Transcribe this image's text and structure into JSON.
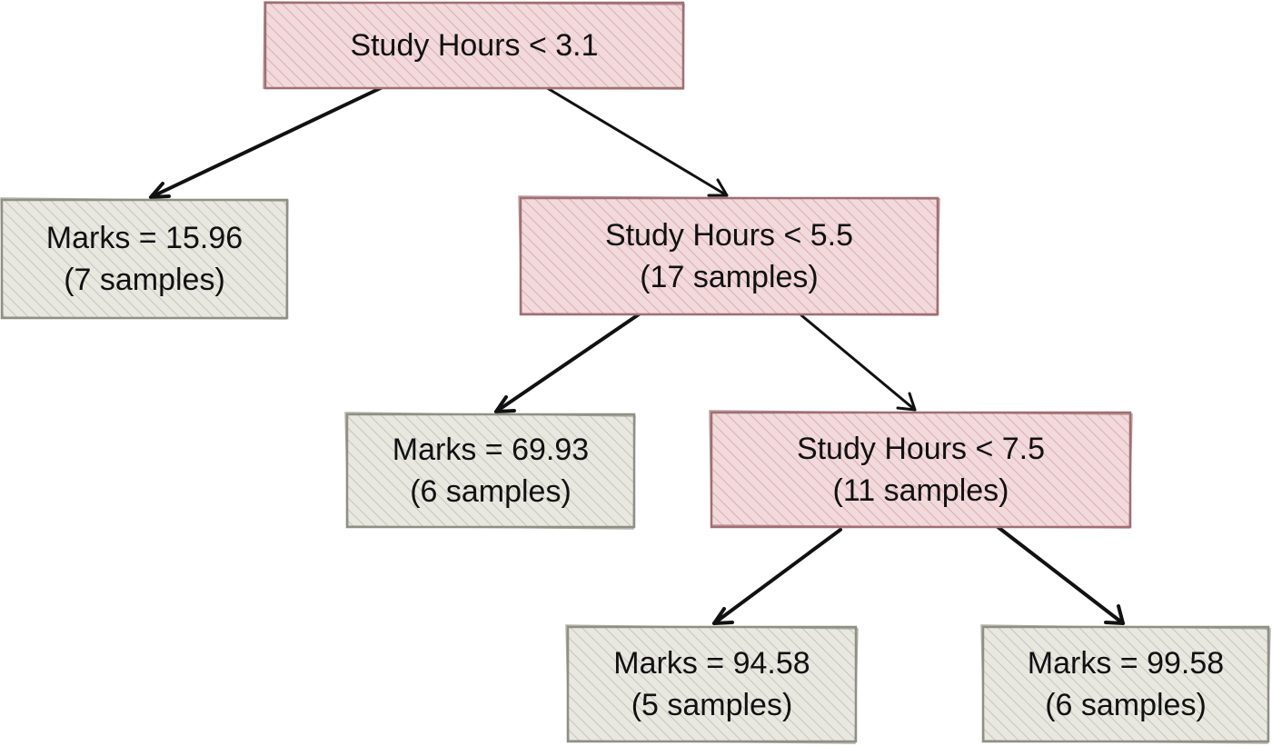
{
  "colors": {
    "decision_fill": "#f2d9db",
    "decision_hatch": "#d9aeb3",
    "decision_stroke": "#9f6f73",
    "leaf_fill": "#e8e8e1",
    "leaf_hatch": "#c5c5ba",
    "leaf_stroke": "#8e9084",
    "arrow": "#111111"
  },
  "tree": {
    "root": {
      "condition": "Study Hours < 3.1",
      "samples": ""
    },
    "root_left": {
      "value": "Marks = 15.96",
      "samples": "(7 samples)"
    },
    "root_right": {
      "condition": "Study Hours < 5.5",
      "samples": "(17 samples)"
    },
    "mid_left": {
      "value": "Marks = 69.93",
      "samples": "(6 samples)"
    },
    "mid_right": {
      "condition": "Study Hours < 7.5",
      "samples": "(11 samples)"
    },
    "low_left": {
      "value": "Marks = 94.58",
      "samples": "(5 samples)"
    },
    "low_right": {
      "value": "Marks = 99.58",
      "samples": "(6 samples)"
    }
  }
}
